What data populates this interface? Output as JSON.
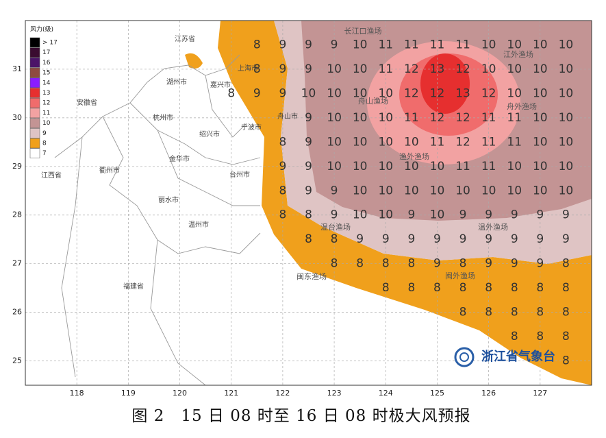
{
  "map": {
    "xlim": [
      117,
      128
    ],
    "ylim": [
      24.5,
      32
    ],
    "xticks": [
      118,
      119,
      120,
      121,
      122,
      123,
      124,
      125,
      126,
      127
    ],
    "yticks": [
      25,
      26,
      27,
      28,
      29,
      30,
      31
    ],
    "legend": {
      "title": "风力(级)",
      "items": [
        {
          "label": "> 17",
          "color": "#000000"
        },
        {
          "label": "17",
          "color": "#3a0c30"
        },
        {
          "label": "16",
          "color": "#4b1468"
        },
        {
          "label": "15",
          "color": "#8e4a40"
        },
        {
          "label": "14",
          "color": "#8a1cff"
        },
        {
          "label": "13",
          "color": "#e62f2f"
        },
        {
          "label": "12",
          "color": "#f06c6c"
        },
        {
          "label": "11",
          "color": "#f2a2a2"
        },
        {
          "label": "10",
          "color": "#c39494"
        },
        {
          "label": "9",
          "color": "#dfc4c4"
        },
        {
          "label": "8",
          "color": "#f0a01c"
        },
        {
          "label": "7",
          "color": "#ffffff"
        }
      ]
    },
    "places": [
      "江苏省",
      "上海市",
      "湖州市",
      "嘉兴市",
      "安徽省",
      "杭州市",
      "舟山市",
      "宁波市",
      "绍兴市",
      "金华市",
      "衢州市",
      "江西省",
      "台州市",
      "丽水市",
      "温州市",
      "福建省"
    ],
    "fishing_grounds": [
      "长江口渔场",
      "江外渔场",
      "舟山渔场",
      "舟外渔场",
      "渔外渔场",
      "温台渔场",
      "温外渔场",
      "闽东渔场",
      "闽外渔场"
    ],
    "wind_levels": [
      {
        "lat": 31.5,
        "lon": [
          121.5,
          122,
          122.5,
          123,
          123.5,
          124,
          124.5,
          125,
          125.5,
          126,
          126.5,
          127,
          127.5
        ],
        "levels": [
          8,
          9,
          9,
          9,
          10,
          11,
          11,
          11,
          11,
          10,
          10,
          10,
          10
        ]
      },
      {
        "lat": 31,
        "lon": [
          121.5,
          122,
          122.5,
          123,
          123.5,
          124,
          124.5,
          125,
          125.5,
          126,
          126.5,
          127,
          127.5
        ],
        "levels": [
          8,
          9,
          9,
          10,
          10,
          11,
          12,
          13,
          12,
          10,
          10,
          10,
          10
        ]
      },
      {
        "lat": 30.5,
        "lon": [
          121,
          121.5,
          122,
          122.5,
          123,
          123.5,
          124,
          124.5,
          125,
          125.5,
          126,
          126.5,
          127,
          127.5
        ],
        "levels": [
          8,
          9,
          9,
          10,
          10,
          10,
          10,
          12,
          12,
          13,
          12,
          10,
          10,
          10
        ]
      },
      {
        "lat": 30,
        "lon": [
          122.5,
          123,
          123.5,
          124,
          124.5,
          125,
          125.5,
          126,
          126.5,
          127,
          127.5
        ],
        "levels": [
          9,
          10,
          10,
          10,
          11,
          12,
          12,
          11,
          11,
          10,
          10
        ]
      },
      {
        "lat": 29.5,
        "lon": [
          122,
          122.5,
          123,
          123.5,
          124,
          124.5,
          125,
          125.5,
          126,
          126.5,
          127,
          127.5
        ],
        "levels": [
          8,
          9,
          10,
          10,
          10,
          10,
          11,
          12,
          11,
          11,
          10,
          10
        ]
      },
      {
        "lat": 29,
        "lon": [
          122,
          122.5,
          123,
          123.5,
          124,
          124.5,
          125,
          125.5,
          126,
          126.5,
          127,
          127.5
        ],
        "levels": [
          9,
          9,
          10,
          10,
          10,
          10,
          10,
          11,
          11,
          10,
          10,
          10
        ]
      },
      {
        "lat": 28.5,
        "lon": [
          122,
          122.5,
          123,
          123.5,
          124,
          124.5,
          125,
          125.5,
          126,
          126.5,
          127,
          127.5
        ],
        "levels": [
          8,
          9,
          9,
          10,
          10,
          10,
          10,
          10,
          10,
          10,
          10,
          10
        ]
      },
      {
        "lat": 28,
        "lon": [
          122,
          122.5,
          123,
          123.5,
          124,
          124.5,
          125,
          125.5,
          126,
          126.5,
          127,
          127.5
        ],
        "levels": [
          8,
          8,
          9,
          10,
          10,
          9,
          10,
          9,
          9,
          9,
          9,
          9
        ]
      },
      {
        "lat": 27.5,
        "lon": [
          122.5,
          123,
          123.5,
          124,
          124.5,
          125,
          125.5,
          126,
          126.5,
          127,
          127.5
        ],
        "levels": [
          8,
          8,
          9,
          9,
          9,
          9,
          9,
          9,
          9,
          9,
          9
        ]
      },
      {
        "lat": 27,
        "lon": [
          123,
          123.5,
          124,
          124.5,
          125,
          125.5,
          126,
          126.5,
          127,
          127.5
        ],
        "levels": [
          8,
          8,
          8,
          8,
          9,
          8,
          9,
          9,
          9,
          8
        ]
      },
      {
        "lat": 26.5,
        "lon": [
          124,
          124.5,
          125,
          125.5,
          126,
          126.5,
          127,
          127.5
        ],
        "levels": [
          8,
          8,
          8,
          8,
          8,
          8,
          8,
          8
        ]
      },
      {
        "lat": 26,
        "lon": [
          125.5,
          126,
          126.5,
          127,
          127.5
        ],
        "levels": [
          8,
          8,
          8,
          8,
          8
        ]
      },
      {
        "lat": 25.5,
        "lon": [
          126.5,
          127,
          127.5
        ],
        "levels": [
          8,
          8,
          8
        ]
      },
      {
        "lat": 25,
        "lon": [
          127.5
        ],
        "levels": [
          8
        ]
      }
    ],
    "logo": "浙江省气象台",
    "caption": "图 2　15 日 08 时至 16 日 08 时极大风预报"
  }
}
